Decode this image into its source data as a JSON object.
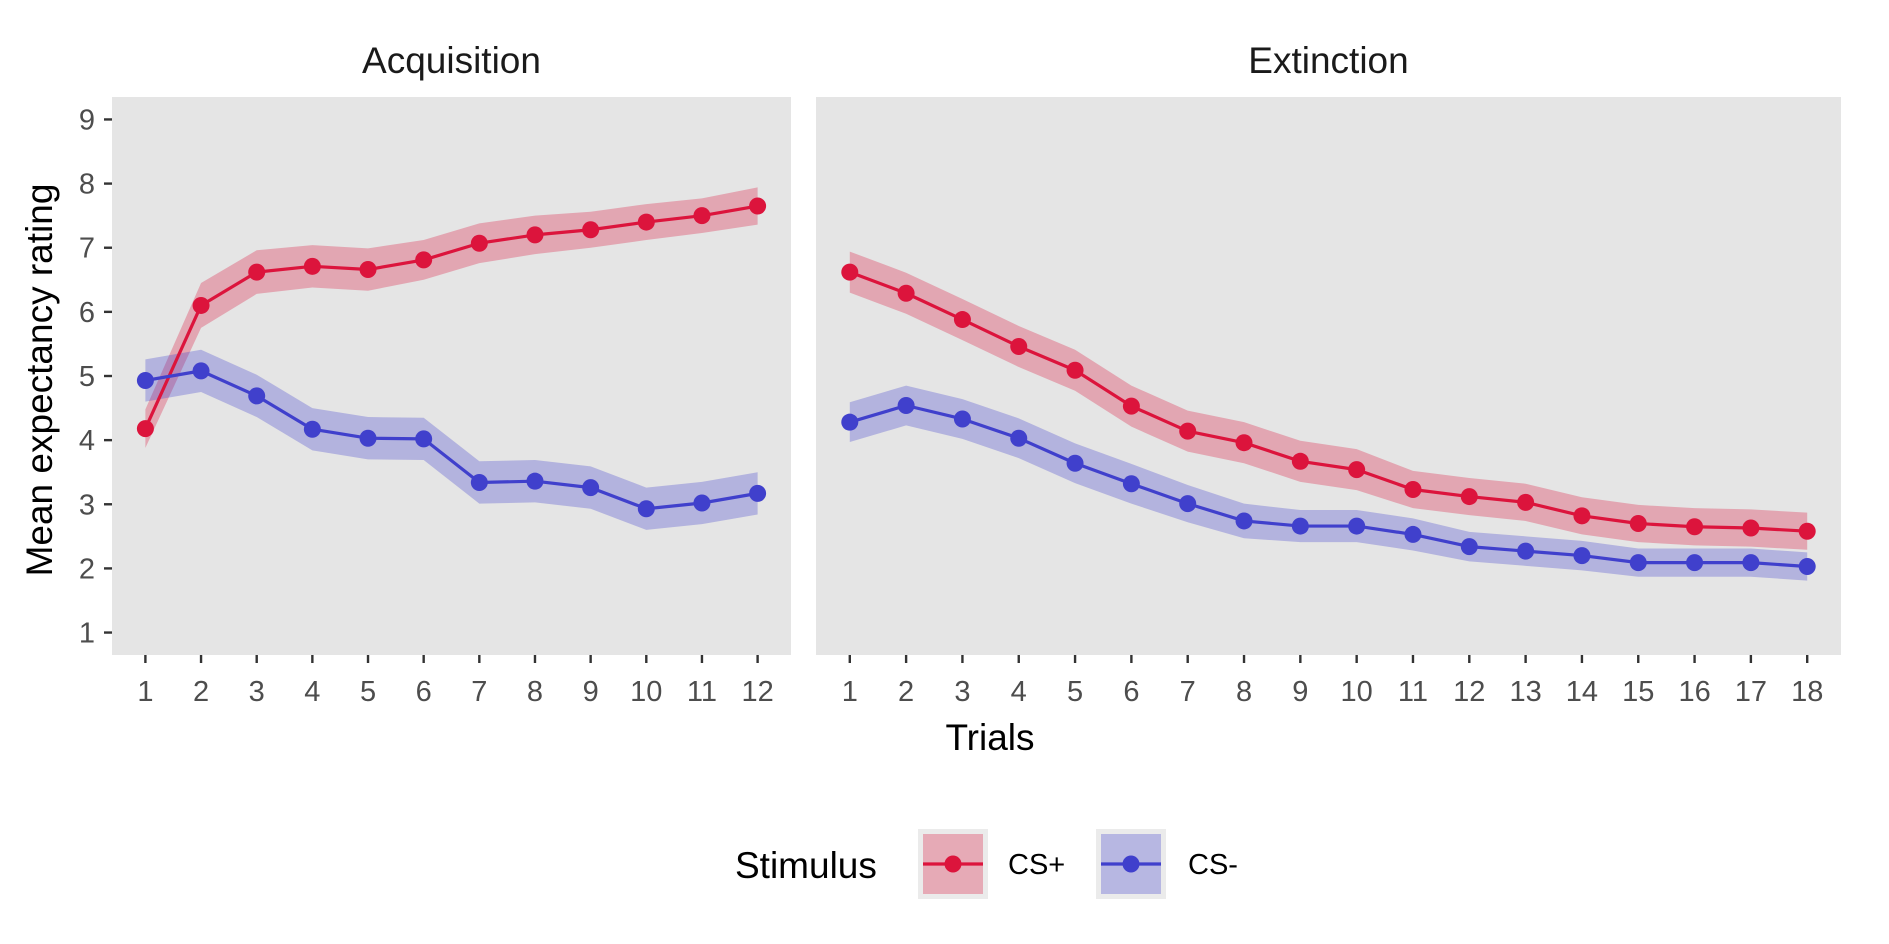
{
  "chart_data": {
    "type": "line",
    "ylabel": "Mean expectancy rating",
    "xlabel": "Trials",
    "ylim": [
      0.65,
      9.35
    ],
    "yticks": [
      "1",
      "2",
      "3",
      "4",
      "5",
      "6",
      "7",
      "8",
      "9"
    ],
    "grid": false,
    "legend_position": "bottom",
    "legend": {
      "title": "Stimulus",
      "items": [
        {
          "label": "CS+",
          "color": "#dc143c"
        },
        {
          "label": "CS-",
          "color": "#4040cc"
        }
      ]
    },
    "colors": {
      "panel_background": "#e5e5e5",
      "cs_plus": "#dc143c",
      "cs_plus_ribbon": "#dc143c",
      "cs_minus": "#4040cc",
      "cs_minus_ribbon": "#4040cc"
    },
    "panels": [
      {
        "title": "Acquisition",
        "x": [
          1,
          2,
          3,
          4,
          5,
          6,
          7,
          8,
          9,
          10,
          11,
          12
        ],
        "x_tick_labels": [
          "1",
          "2",
          "3",
          "4",
          "5",
          "6",
          "7",
          "8",
          "9",
          "10",
          "11",
          "12"
        ],
        "series": [
          {
            "name": "CS+",
            "values": [
              4.18,
              6.1,
              6.62,
              6.71,
              6.66,
              6.81,
              7.07,
              7.2,
              7.28,
              7.4,
              7.5,
              7.65
            ],
            "lower": [
              3.88,
              5.75,
              6.28,
              6.38,
              6.33,
              6.5,
              6.76,
              6.9,
              7.0,
              7.12,
              7.23,
              7.36
            ],
            "upper": [
              4.48,
              6.45,
              6.96,
              7.04,
              6.99,
              7.12,
              7.38,
              7.5,
              7.56,
              7.68,
              7.77,
              7.94
            ]
          },
          {
            "name": "CS-",
            "values": [
              4.93,
              5.08,
              4.69,
              4.17,
              4.03,
              4.02,
              3.34,
              3.36,
              3.26,
              2.93,
              3.02,
              3.17
            ],
            "lower": [
              4.6,
              4.75,
              4.36,
              3.84,
              3.7,
              3.69,
              3.01,
              3.03,
              2.93,
              2.6,
              2.69,
              2.84
            ],
            "upper": [
              5.26,
              5.41,
              5.02,
              4.5,
              4.36,
              4.35,
              3.67,
              3.69,
              3.59,
              3.26,
              3.35,
              3.5
            ]
          }
        ]
      },
      {
        "title": "Extinction",
        "x": [
          1,
          2,
          3,
          4,
          5,
          6,
          7,
          8,
          9,
          10,
          11,
          12,
          13,
          14,
          15,
          16,
          17,
          18
        ],
        "x_tick_labels": [
          "1",
          "2",
          "3",
          "4",
          "5",
          "6",
          "7",
          "8",
          "9",
          "10",
          "11",
          "12",
          "13",
          "14",
          "15",
          "16",
          "17",
          "18"
        ],
        "series": [
          {
            "name": "CS+",
            "values": [
              6.62,
              6.29,
              5.88,
              5.46,
              5.09,
              4.53,
              4.14,
              3.96,
              3.67,
              3.54,
              3.23,
              3.12,
              3.03,
              2.82,
              2.7,
              2.65,
              2.63,
              2.58
            ],
            "lower": [
              6.3,
              5.97,
              5.56,
              5.14,
              4.77,
              4.21,
              3.82,
              3.64,
              3.35,
              3.22,
              2.94,
              2.83,
              2.74,
              2.53,
              2.41,
              2.36,
              2.34,
              2.29
            ],
            "upper": [
              6.94,
              6.61,
              6.2,
              5.78,
              5.41,
              4.85,
              4.46,
              4.28,
              3.99,
              3.86,
              3.52,
              3.41,
              3.32,
              3.11,
              2.99,
              2.94,
              2.92,
              2.87
            ]
          },
          {
            "name": "CS-",
            "values": [
              4.28,
              4.54,
              4.33,
              4.03,
              3.64,
              3.32,
              3.01,
              2.74,
              2.66,
              2.66,
              2.53,
              2.34,
              2.27,
              2.2,
              2.09,
              2.09,
              2.09,
              2.03
            ],
            "lower": [
              3.97,
              4.23,
              4.02,
              3.72,
              3.33,
              3.01,
              2.72,
              2.47,
              2.41,
              2.41,
              2.28,
              2.11,
              2.04,
              1.97,
              1.87,
              1.87,
              1.87,
              1.81
            ],
            "upper": [
              4.59,
              4.85,
              4.64,
              4.34,
              3.95,
              3.63,
              3.3,
              3.01,
              2.91,
              2.91,
              2.78,
              2.57,
              2.5,
              2.43,
              2.31,
              2.31,
              2.31,
              2.25
            ]
          }
        ]
      }
    ]
  }
}
